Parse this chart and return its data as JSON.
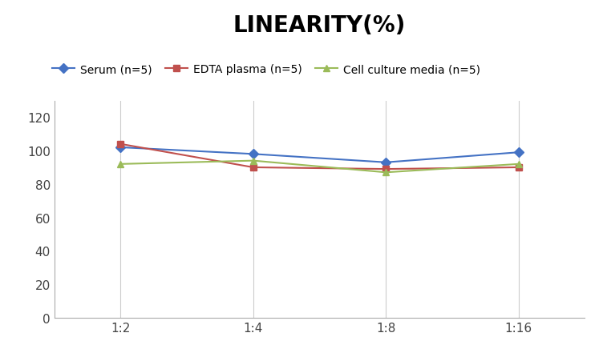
{
  "title": "LINEARITY(%)",
  "x_labels": [
    "1:2",
    "1:4",
    "1:8",
    "1:16"
  ],
  "series": [
    {
      "label": "Serum (n=5)",
      "values": [
        102,
        98,
        93,
        99
      ],
      "color": "#4472C4",
      "marker": "D",
      "linestyle": "-"
    },
    {
      "label": "EDTA plasma (n=5)",
      "values": [
        104,
        90,
        89,
        90
      ],
      "color": "#C0504D",
      "marker": "s",
      "linestyle": "-"
    },
    {
      "label": "Cell culture media (n=5)",
      "values": [
        92,
        94,
        87,
        92
      ],
      "color": "#9BBB59",
      "marker": "^",
      "linestyle": "-"
    }
  ],
  "ylim": [
    0,
    130
  ],
  "yticks": [
    0,
    20,
    40,
    60,
    80,
    100,
    120
  ],
  "title_fontsize": 20,
  "legend_fontsize": 10,
  "tick_fontsize": 11,
  "background_color": "#ffffff",
  "grid_color": "#cccccc"
}
